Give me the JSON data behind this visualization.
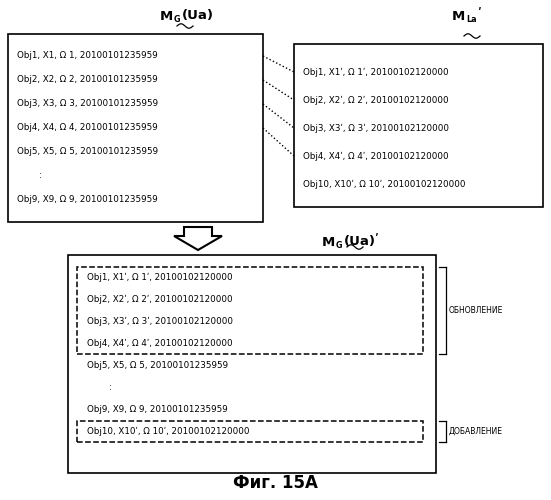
{
  "left_box_lines": [
    "Obj1, X1, Ω 1, 20100101235959",
    "Obj2, X2, Ω 2, 20100101235959",
    "Obj3, X3, Ω 3, 20100101235959",
    "Obj4, X4, Ω 4, 20100101235959",
    "Obj5, X5, Ω 5, 20100101235959",
    "        :",
    "Obj9, X9, Ω 9, 20100101235959"
  ],
  "right_box_lines": [
    "Obj1, X1ʹ, Ω 1ʹ, 20100102120000",
    "Obj2, X2ʹ, Ω 2ʹ, 20100102120000",
    "Obj3, X3ʹ, Ω 3ʹ, 20100102120000",
    "Obj4, X4ʹ, Ω 4ʹ, 20100102120000",
    "Obj10, X10ʹ, Ω 10ʹ, 20100102120000"
  ],
  "bottom_update_lines": [
    "Obj1, X1ʹ, Ω 1ʹ, 20100102120000",
    "Obj2, X2ʹ, Ω 2ʹ, 20100102120000",
    "Obj3, X3ʹ, Ω 3ʹ, 20100102120000",
    "Obj4, X4ʹ, Ω 4ʹ, 20100102120000"
  ],
  "bottom_mid_lines": [
    "Obj5, X5, Ω 5, 20100101235959",
    "        :",
    "Obj9, X9, Ω 9, 20100101235959"
  ],
  "bottom_add_line": "Obj10, X10ʹ, Ω 10ʹ, 20100102120000",
  "label_update": "ОБНОВЛЕНИЕ",
  "label_add": "ДОБАВЛЕНИЕ",
  "fig_caption": "Фиг. 15A",
  "bg_color": "#ffffff",
  "text_color": "#000000"
}
